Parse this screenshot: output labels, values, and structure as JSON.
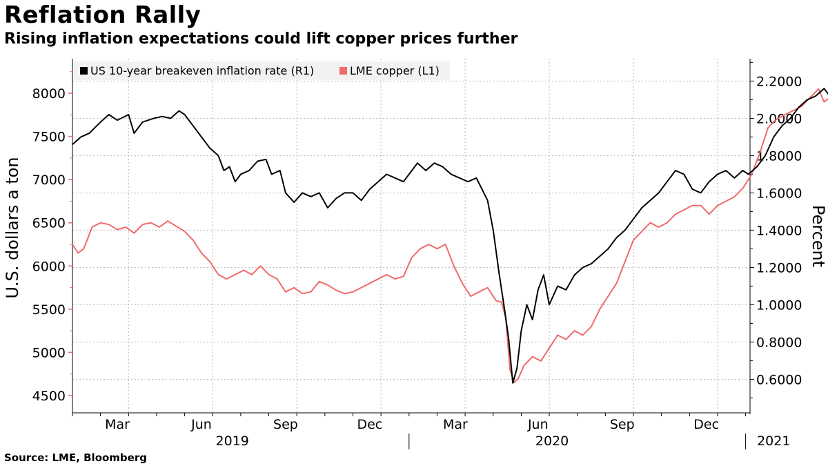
{
  "header": {
    "title": "Reflation Rally",
    "subtitle": "Rising inflation expectations could lift copper prices further"
  },
  "footer": {
    "source": "Source: LME, Bloomberg"
  },
  "chart_data": {
    "type": "line",
    "title": "Reflation Rally",
    "subtitle": "Rising inflation expectations could lift copper prices further",
    "ylabel_left": "U.S. dollars a ton",
    "ylabel_right": "Percent",
    "ylim_left": [
      4300,
      8400
    ],
    "ylim_right": [
      0.42,
      2.32
    ],
    "yticks_left": [
      "4500",
      "5000",
      "5500",
      "6000",
      "6500",
      "7000",
      "7500",
      "8000"
    ],
    "yticks_right": [
      "0.6000",
      "0.8000",
      "1.0000",
      "1.2000",
      "1.4000",
      "1.6000",
      "1.8000",
      "2.0000",
      "2.2000"
    ],
    "month_ticks": [
      "Mar",
      "Jun",
      "Sep",
      "Dec",
      "Mar",
      "Jun",
      "Sep",
      "Dec"
    ],
    "years": [
      "2019",
      "2020",
      "2021"
    ],
    "legend": [
      "US 10-year breakeven inflation rate (R1)",
      "LME copper (L1)"
    ],
    "colors": {
      "breakeven": "#000000",
      "copper": "#f06a6a"
    },
    "x_unit": "months since Jan 2019",
    "series": [
      {
        "name": "US 10-year breakeven inflation rate (R1)",
        "axis": "right",
        "points": [
          [
            0.0,
            1.86
          ],
          [
            0.3,
            1.9
          ],
          [
            0.6,
            1.92
          ],
          [
            1.0,
            1.98
          ],
          [
            1.3,
            2.02
          ],
          [
            1.6,
            1.99
          ],
          [
            2.0,
            2.02
          ],
          [
            2.2,
            1.92
          ],
          [
            2.5,
            1.98
          ],
          [
            2.9,
            2.0
          ],
          [
            3.2,
            2.01
          ],
          [
            3.5,
            2.0
          ],
          [
            3.8,
            2.04
          ],
          [
            4.0,
            2.02
          ],
          [
            4.3,
            1.96
          ],
          [
            4.6,
            1.9
          ],
          [
            4.9,
            1.84
          ],
          [
            5.2,
            1.8
          ],
          [
            5.4,
            1.72
          ],
          [
            5.6,
            1.74
          ],
          [
            5.8,
            1.66
          ],
          [
            6.0,
            1.7
          ],
          [
            6.3,
            1.72
          ],
          [
            6.6,
            1.77
          ],
          [
            6.9,
            1.78
          ],
          [
            7.1,
            1.7
          ],
          [
            7.4,
            1.72
          ],
          [
            7.6,
            1.6
          ],
          [
            7.9,
            1.55
          ],
          [
            8.2,
            1.6
          ],
          [
            8.5,
            1.58
          ],
          [
            8.8,
            1.6
          ],
          [
            9.1,
            1.52
          ],
          [
            9.4,
            1.57
          ],
          [
            9.7,
            1.6
          ],
          [
            10.0,
            1.6
          ],
          [
            10.3,
            1.56
          ],
          [
            10.6,
            1.62
          ],
          [
            10.9,
            1.66
          ],
          [
            11.2,
            1.7
          ],
          [
            11.5,
            1.68
          ],
          [
            11.8,
            1.66
          ],
          [
            12.1,
            1.72
          ],
          [
            12.3,
            1.76
          ],
          [
            12.6,
            1.72
          ],
          [
            12.9,
            1.76
          ],
          [
            13.2,
            1.74
          ],
          [
            13.5,
            1.7
          ],
          [
            13.8,
            1.68
          ],
          [
            14.1,
            1.66
          ],
          [
            14.4,
            1.68
          ],
          [
            14.6,
            1.62
          ],
          [
            14.8,
            1.56
          ],
          [
            15.0,
            1.4
          ],
          [
            15.2,
            1.18
          ],
          [
            15.4,
            0.98
          ],
          [
            15.55,
            0.82
          ],
          [
            15.7,
            0.58
          ],
          [
            15.85,
            0.66
          ],
          [
            16.0,
            0.86
          ],
          [
            16.2,
            1.0
          ],
          [
            16.4,
            0.92
          ],
          [
            16.6,
            1.08
          ],
          [
            16.8,
            1.16
          ],
          [
            17.0,
            1.0
          ],
          [
            17.3,
            1.1
          ],
          [
            17.6,
            1.08
          ],
          [
            17.9,
            1.16
          ],
          [
            18.2,
            1.2
          ],
          [
            18.5,
            1.22
          ],
          [
            18.8,
            1.26
          ],
          [
            19.1,
            1.3
          ],
          [
            19.4,
            1.36
          ],
          [
            19.7,
            1.4
          ],
          [
            20.0,
            1.46
          ],
          [
            20.3,
            1.52
          ],
          [
            20.6,
            1.56
          ],
          [
            20.9,
            1.6
          ],
          [
            21.2,
            1.66
          ],
          [
            21.5,
            1.72
          ],
          [
            21.8,
            1.7
          ],
          [
            22.1,
            1.62
          ],
          [
            22.4,
            1.6
          ],
          [
            22.7,
            1.66
          ],
          [
            23.0,
            1.7
          ],
          [
            23.3,
            1.72
          ],
          [
            23.6,
            1.68
          ],
          [
            23.9,
            1.72
          ],
          [
            24.1,
            1.7
          ],
          [
            24.4,
            1.74
          ],
          [
            24.7,
            1.8
          ],
          [
            25.0,
            1.9
          ],
          [
            25.3,
            1.96
          ],
          [
            25.6,
            2.0
          ],
          [
            25.9,
            2.06
          ],
          [
            26.2,
            2.1
          ],
          [
            26.5,
            2.12
          ],
          [
            26.8,
            2.16
          ],
          [
            27.0,
            2.12
          ],
          [
            27.2,
            2.2
          ],
          [
            27.4,
            2.2
          ]
        ]
      },
      {
        "name": "LME copper (L1)",
        "axis": "left",
        "points": [
          [
            0.0,
            6250
          ],
          [
            0.2,
            6150
          ],
          [
            0.4,
            6200
          ],
          [
            0.7,
            6450
          ],
          [
            1.0,
            6500
          ],
          [
            1.3,
            6480
          ],
          [
            1.6,
            6420
          ],
          [
            1.9,
            6450
          ],
          [
            2.2,
            6380
          ],
          [
            2.5,
            6480
          ],
          [
            2.8,
            6500
          ],
          [
            3.1,
            6450
          ],
          [
            3.4,
            6520
          ],
          [
            3.7,
            6460
          ],
          [
            4.0,
            6400
          ],
          [
            4.3,
            6300
          ],
          [
            4.6,
            6150
          ],
          [
            4.9,
            6050
          ],
          [
            5.2,
            5900
          ],
          [
            5.5,
            5850
          ],
          [
            5.8,
            5900
          ],
          [
            6.1,
            5950
          ],
          [
            6.4,
            5900
          ],
          [
            6.7,
            6000
          ],
          [
            7.0,
            5900
          ],
          [
            7.3,
            5850
          ],
          [
            7.6,
            5700
          ],
          [
            7.9,
            5750
          ],
          [
            8.2,
            5680
          ],
          [
            8.5,
            5700
          ],
          [
            8.8,
            5820
          ],
          [
            9.1,
            5780
          ],
          [
            9.4,
            5720
          ],
          [
            9.7,
            5680
          ],
          [
            10.0,
            5700
          ],
          [
            10.3,
            5750
          ],
          [
            10.6,
            5800
          ],
          [
            10.9,
            5850
          ],
          [
            11.2,
            5900
          ],
          [
            11.5,
            5850
          ],
          [
            11.8,
            5880
          ],
          [
            12.1,
            6100
          ],
          [
            12.4,
            6200
          ],
          [
            12.7,
            6250
          ],
          [
            13.0,
            6200
          ],
          [
            13.3,
            6250
          ],
          [
            13.6,
            6000
          ],
          [
            13.9,
            5800
          ],
          [
            14.2,
            5650
          ],
          [
            14.5,
            5700
          ],
          [
            14.8,
            5750
          ],
          [
            15.1,
            5600
          ],
          [
            15.3,
            5580
          ],
          [
            15.45,
            5400
          ],
          [
            15.6,
            4800
          ],
          [
            15.75,
            4650
          ],
          [
            15.9,
            4700
          ],
          [
            16.1,
            4850
          ],
          [
            16.4,
            4950
          ],
          [
            16.7,
            4900
          ],
          [
            17.0,
            5050
          ],
          [
            17.3,
            5200
          ],
          [
            17.6,
            5150
          ],
          [
            17.9,
            5250
          ],
          [
            18.2,
            5200
          ],
          [
            18.5,
            5300
          ],
          [
            18.8,
            5500
          ],
          [
            19.1,
            5650
          ],
          [
            19.4,
            5800
          ],
          [
            19.7,
            6050
          ],
          [
            20.0,
            6300
          ],
          [
            20.3,
            6400
          ],
          [
            20.6,
            6500
          ],
          [
            20.9,
            6450
          ],
          [
            21.2,
            6500
          ],
          [
            21.5,
            6600
          ],
          [
            21.8,
            6650
          ],
          [
            22.1,
            6700
          ],
          [
            22.4,
            6700
          ],
          [
            22.7,
            6600
          ],
          [
            23.0,
            6700
          ],
          [
            23.3,
            6750
          ],
          [
            23.6,
            6800
          ],
          [
            23.9,
            6900
          ],
          [
            24.2,
            7050
          ],
          [
            24.5,
            7300
          ],
          [
            24.8,
            7600
          ],
          [
            25.1,
            7700
          ],
          [
            25.4,
            7750
          ],
          [
            25.7,
            7800
          ],
          [
            26.0,
            7850
          ],
          [
            26.3,
            7950
          ],
          [
            26.6,
            8050
          ],
          [
            26.8,
            7900
          ],
          [
            27.0,
            7950
          ],
          [
            27.2,
            7850
          ],
          [
            27.4,
            7900
          ]
        ]
      }
    ]
  }
}
